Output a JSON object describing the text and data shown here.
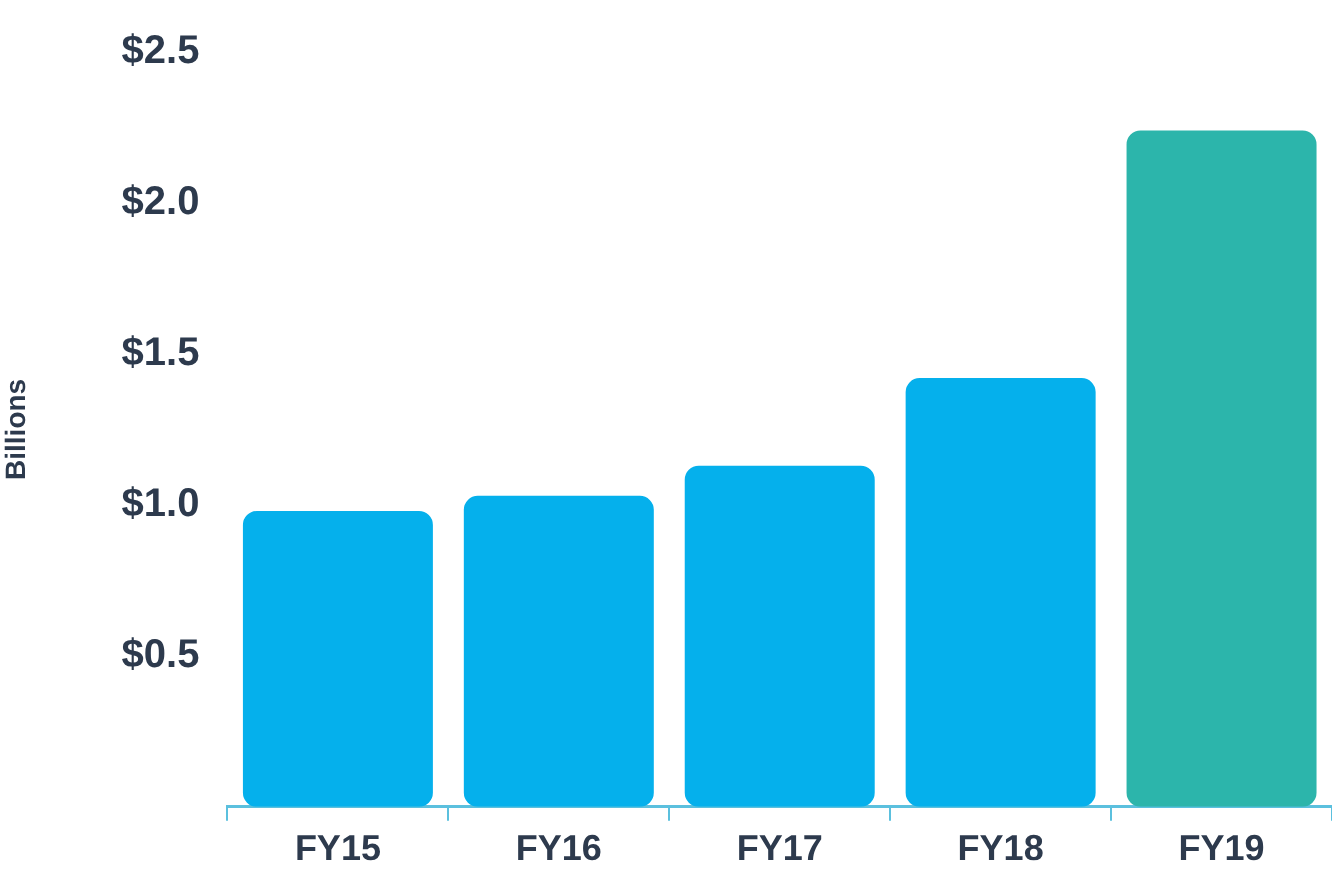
{
  "chart_data": {
    "type": "bar",
    "ylabel": "Billions",
    "categories": [
      "FY15",
      "FY16",
      "FY17",
      "FY18",
      "FY19"
    ],
    "values": [
      0.98,
      1.03,
      1.13,
      1.42,
      2.24
    ],
    "colors": [
      "#05b0ec",
      "#05b0ec",
      "#05b0ec",
      "#05b0ec",
      "#2cb5ab"
    ],
    "ylim": [
      0,
      2.5
    ],
    "yticks": [
      {
        "value": 0.5,
        "label": "$0.5"
      },
      {
        "value": 1.0,
        "label": "$1.0"
      },
      {
        "value": 1.5,
        "label": "$1.5"
      },
      {
        "value": 2.0,
        "label": "$2.0"
      },
      {
        "value": 2.5,
        "label": "$2.5"
      }
    ],
    "grid": false,
    "legend": false
  }
}
